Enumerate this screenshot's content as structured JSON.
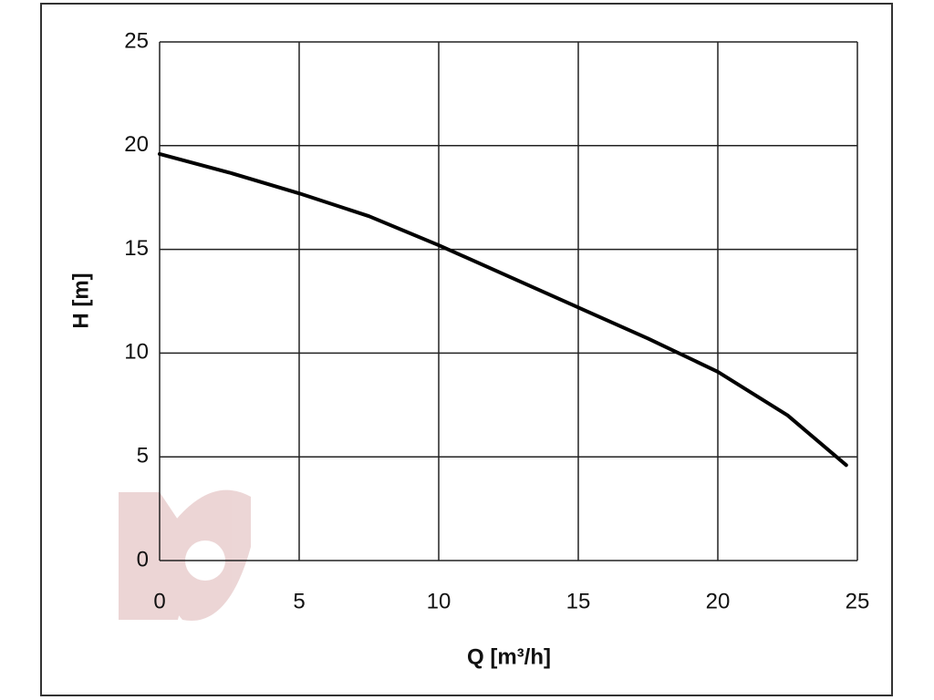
{
  "chart_data": {
    "type": "line",
    "xlabel": "Q [m³/h]",
    "ylabel": "H [m]",
    "x": [
      0,
      2.5,
      5,
      7.5,
      10,
      12.5,
      15,
      17.5,
      20,
      22.5,
      24.6
    ],
    "series": [
      {
        "name": "H",
        "color": "#000000",
        "values": [
          19.6,
          18.7,
          17.7,
          16.6,
          15.2,
          13.7,
          12.2,
          10.7,
          9.1,
          7.0,
          4.6
        ]
      }
    ],
    "xlim": [
      0,
      25
    ],
    "ylim": [
      0,
      25
    ],
    "xticks": [
      0,
      5,
      10,
      15,
      20,
      25
    ],
    "yticks": [
      0,
      5,
      10,
      15,
      20,
      25
    ],
    "grid": true
  }
}
